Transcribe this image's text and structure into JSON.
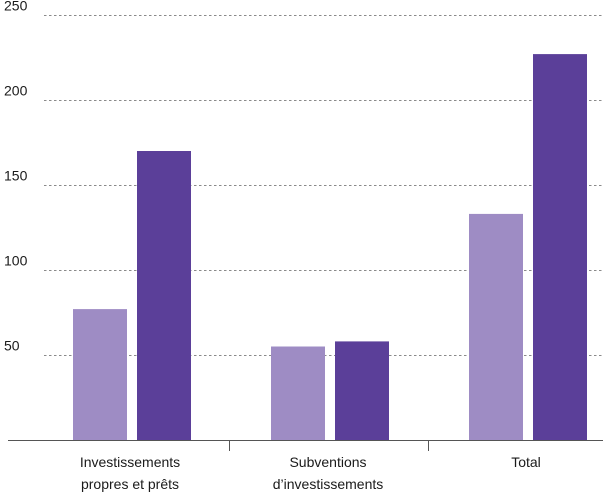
{
  "chart_data": {
    "type": "bar",
    "title": "",
    "xlabel": "",
    "ylabel": "",
    "ylim": [
      0,
      250
    ],
    "yticks": [
      50,
      100,
      150,
      200,
      250
    ],
    "ytick_labels": [
      "50",
      "100",
      "150",
      "200",
      "250"
    ],
    "grid": true,
    "legend": "none",
    "categories": [
      [
        "Investissements",
        "propres et prêts"
      ],
      [
        "Subventions",
        "d’investissements"
      ],
      [
        "Total"
      ]
    ],
    "series": [
      {
        "values": [
          77,
          55,
          133
        ],
        "color": "#9e8cc4"
      },
      {
        "values": [
          170,
          58,
          227
        ],
        "color": "#5b3f99"
      }
    ]
  }
}
